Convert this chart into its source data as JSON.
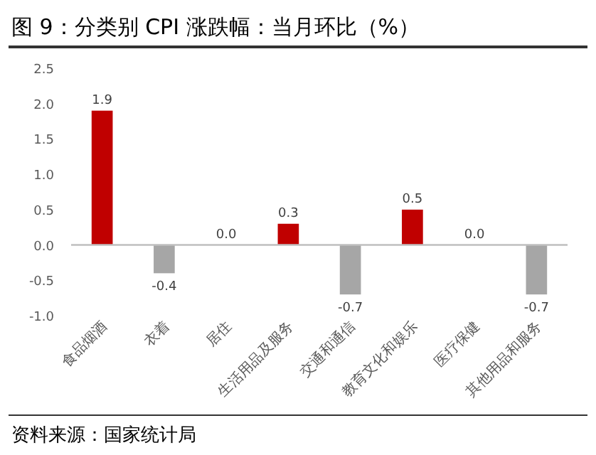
{
  "chart_data": {
    "type": "bar",
    "title": "图 9：分类别 CPI 涨跌幅：当月环比（%）",
    "categories": [
      "食品烟酒",
      "衣着",
      "居住",
      "生活用品及服务",
      "交通和通信",
      "教育文化和娱乐",
      "医疗保健",
      "其他用品和服务"
    ],
    "values": [
      1.9,
      -0.4,
      0.0,
      0.3,
      -0.7,
      0.5,
      0.0,
      -0.7
    ],
    "colors": [
      "#c00000",
      "#a6a6a6",
      "#a6a6a6",
      "#c00000",
      "#a6a6a6",
      "#c00000",
      "#a6a6a6",
      "#a6a6a6"
    ],
    "value_labels": [
      "1.9",
      "-0.4",
      "0.0",
      "0.3",
      "-0.7",
      "0.5",
      "0.0",
      "-0.7"
    ],
    "ylim": [
      -1.0,
      2.5
    ],
    "yticks": [
      {
        "value": -1.0,
        "label": "-1.0"
      },
      {
        "value": -0.5,
        "label": "-0.5"
      },
      {
        "value": 0,
        "label": "0.0"
      },
      {
        "value": 0.5,
        "label": "0.5"
      },
      {
        "value": 1.0,
        "label": "1.0"
      },
      {
        "value": 1.5,
        "label": "1.5"
      },
      {
        "value": 2.0,
        "label": "2.0"
      },
      {
        "value": 2.5,
        "label": "2.5"
      }
    ],
    "grid": false,
    "ref_lines": [
      {
        "axis": "y",
        "value": 0,
        "color": "#bfbfbf"
      }
    ],
    "annotations": [
      "资料来源：国家统计局"
    ]
  }
}
